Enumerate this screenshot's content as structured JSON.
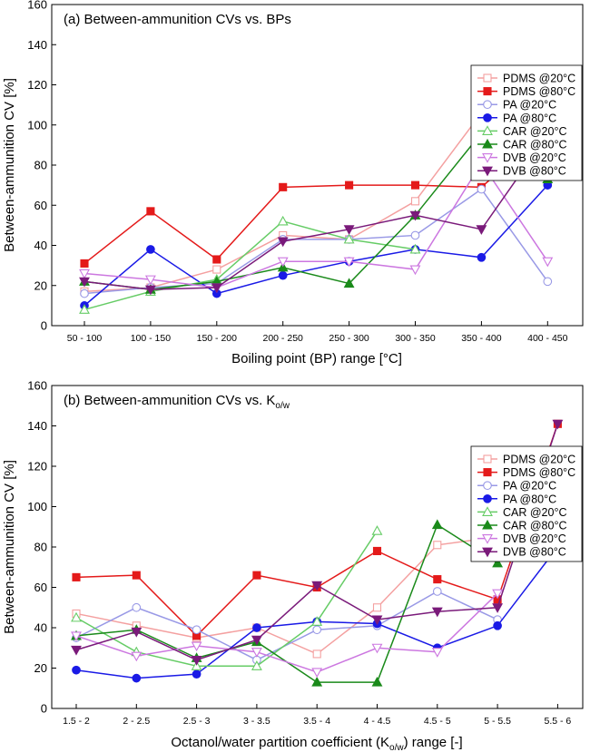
{
  "chart_data": [
    {
      "type": "line",
      "title": "(a) Between-ammunition CVs vs. BPs",
      "xlabel": "Boiling point (BP) range [°C]",
      "ylabel": "Between-ammunition CV [%]",
      "ylim": [
        0,
        160
      ],
      "yticks": [
        "0",
        "20",
        "40",
        "60",
        "80",
        "100",
        "120",
        "140",
        "160"
      ],
      "categories": [
        "50 - 100",
        "100 - 150",
        "150 - 200",
        "200 - 250",
        "250 - 300",
        "300 - 350",
        "350 - 400",
        "400 - 450"
      ],
      "legend_position": "right",
      "series": [
        {
          "name": "PDMS @20°C",
          "color": "#f4a0a0",
          "marker": "square",
          "filled": false,
          "values": [
            17,
            19,
            28,
            45,
            43,
            62,
            106,
            100
          ]
        },
        {
          "name": "PDMS @80°C",
          "color": "#e41a1a",
          "marker": "square",
          "filled": true,
          "values": [
            31,
            57,
            33,
            69,
            70,
            70,
            69,
            98
          ]
        },
        {
          "name": "PA @20°C",
          "color": "#9999e6",
          "marker": "circle",
          "filled": false,
          "values": [
            16,
            19,
            21,
            43,
            43,
            45,
            68,
            22
          ]
        },
        {
          "name": "PA @80°C",
          "color": "#1a1ae6",
          "marker": "circle",
          "filled": true,
          "values": [
            10,
            38,
            16,
            25,
            32,
            38,
            34,
            70
          ]
        },
        {
          "name": "CAR @20°C",
          "color": "#66cc66",
          "marker": "triangle-up",
          "filled": false,
          "values": [
            8,
            17,
            23,
            52,
            43,
            38,
            null,
            null
          ]
        },
        {
          "name": "CAR @80°C",
          "color": "#1a8a1a",
          "marker": "triangle-up",
          "filled": true,
          "values": [
            22,
            18,
            22,
            29,
            21,
            55,
            96,
            73
          ]
        },
        {
          "name": "DVB @20°C",
          "color": "#cc77e0",
          "marker": "triangle-down",
          "filled": false,
          "values": [
            26,
            23,
            19,
            32,
            32,
            28,
            81,
            32
          ]
        },
        {
          "name": "DVB @80°C",
          "color": "#7a1a7a",
          "marker": "triangle-down",
          "filled": true,
          "values": [
            22,
            18,
            19,
            42,
            48,
            55,
            48,
            95
          ]
        }
      ]
    },
    {
      "type": "line",
      "title": "(b) Between-ammunition CVs vs. K",
      "title_sub": "o/w",
      "xlabel": "Octanol/water partition coefficient (K",
      "xlabel_sub": "o/w",
      "xlabel_end": ") range [-]",
      "ylabel": "Between-ammunition CV [%]",
      "ylim": [
        0,
        160
      ],
      "yticks": [
        "0",
        "20",
        "40",
        "60",
        "80",
        "100",
        "120",
        "140",
        "160"
      ],
      "categories": [
        "1.5 - 2",
        "2 - 2.5",
        "2.5 - 3",
        "3 - 3.5",
        "3.5 - 4",
        "4 - 4.5",
        "4.5 - 5",
        "5 - 5.5",
        "5.5 - 6"
      ],
      "legend_position": "right",
      "series": [
        {
          "name": "PDMS @20°C",
          "color": "#f4a0a0",
          "marker": "square",
          "filled": false,
          "values": [
            47,
            41,
            35,
            40,
            27,
            50,
            81,
            85,
            null
          ]
        },
        {
          "name": "PDMS @80°C",
          "color": "#e41a1a",
          "marker": "square",
          "filled": true,
          "values": [
            65,
            66,
            36,
            66,
            60,
            78,
            64,
            54,
            141
          ]
        },
        {
          "name": "PA @20°C",
          "color": "#9999e6",
          "marker": "circle",
          "filled": false,
          "values": [
            35,
            50,
            39,
            24,
            39,
            41,
            58,
            44,
            null
          ]
        },
        {
          "name": "PA @80°C",
          "color": "#1a1ae6",
          "marker": "circle",
          "filled": true,
          "values": [
            19,
            15,
            17,
            40,
            43,
            42,
            30,
            41,
            80
          ]
        },
        {
          "name": "CAR @20°C",
          "color": "#66cc66",
          "marker": "triangle-up",
          "filled": false,
          "values": [
            45,
            28,
            21,
            21,
            43,
            88,
            null,
            null,
            null
          ]
        },
        {
          "name": "CAR @80°C",
          "color": "#1a8a1a",
          "marker": "triangle-up",
          "filled": true,
          "values": [
            36,
            39,
            25,
            33,
            13,
            13,
            91,
            72,
            null
          ]
        },
        {
          "name": "DVB @20°C",
          "color": "#cc77e0",
          "marker": "triangle-down",
          "filled": false,
          "values": [
            36,
            26,
            31,
            28,
            18,
            30,
            28,
            57,
            null
          ]
        },
        {
          "name": "DVB @80°C",
          "color": "#7a1a7a",
          "marker": "triangle-down",
          "filled": true,
          "values": [
            29,
            38,
            24,
            34,
            61,
            44,
            48,
            50,
            141
          ]
        }
      ]
    }
  ]
}
